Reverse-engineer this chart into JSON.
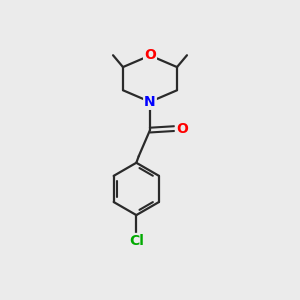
{
  "background_color": "#ebebeb",
  "bond_color": "#2a2a2a",
  "atom_colors": {
    "O": "#ff0000",
    "N": "#0000ff",
    "Cl": "#00aa00",
    "C": "#2a2a2a"
  },
  "font_size_atoms": 10,
  "figsize": [
    3.0,
    3.0
  ],
  "dpi": 100
}
